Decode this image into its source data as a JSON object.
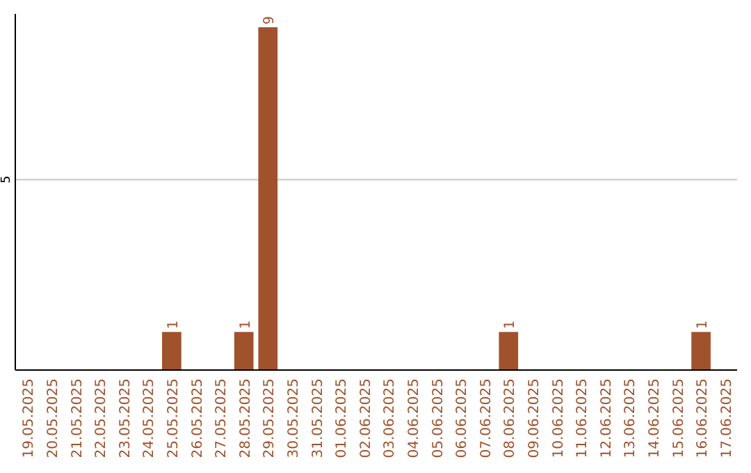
{
  "chart_data": {
    "type": "bar",
    "categories": [
      "19.05.2025",
      "20.05.2025",
      "21.05.2025",
      "22.05.2025",
      "23.05.2025",
      "24.05.2025",
      "25.05.2025",
      "26.05.2025",
      "27.05.2025",
      "28.05.2025",
      "29.05.2025",
      "30.05.2025",
      "31.05.2025",
      "01.06.2025",
      "02.06.2025",
      "03.06.2025",
      "04.06.2025",
      "05.06.2025",
      "06.06.2025",
      "07.06.2025",
      "08.06.2025",
      "09.06.2025",
      "10.06.2025",
      "11.06.2025",
      "12.06.2025",
      "13.06.2025",
      "14.06.2025",
      "15.06.2025",
      "16.06.2025",
      "17.06.2025"
    ],
    "values": [
      0,
      0,
      0,
      0,
      0,
      0,
      1,
      0,
      0,
      1,
      9,
      0,
      0,
      0,
      0,
      0,
      0,
      0,
      0,
      0,
      1,
      0,
      0,
      0,
      0,
      0,
      0,
      0,
      1,
      0
    ],
    "value_labels": [
      null,
      null,
      null,
      null,
      null,
      null,
      "1",
      null,
      null,
      "1",
      "9",
      null,
      null,
      null,
      null,
      null,
      null,
      null,
      null,
      null,
      "1",
      null,
      null,
      null,
      null,
      null,
      null,
      null,
      "1",
      null
    ],
    "color": "#a0522d",
    "ylim": [
      0,
      9.35
    ],
    "yticks": [
      5
    ],
    "grid": "y"
  }
}
